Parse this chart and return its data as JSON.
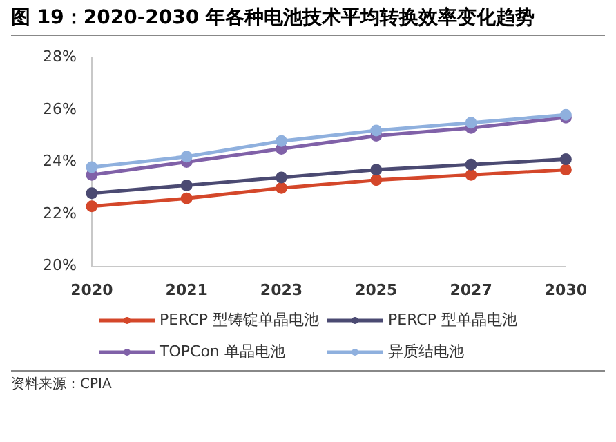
{
  "chart_data": {
    "type": "line",
    "title": "图 19：2020-2030 年各种电池技术平均转换效率变化趋势",
    "categories": [
      "2020",
      "2021",
      "2023",
      "2025",
      "2027",
      "2030"
    ],
    "series": [
      {
        "name": "PERCP 型铸锭单晶电池",
        "color": "#d4472a",
        "values": [
          22.3,
          22.6,
          23.0,
          23.3,
          23.5,
          23.7
        ]
      },
      {
        "name": "PERCP 型单晶电池",
        "color": "#4b4a72",
        "values": [
          22.8,
          23.1,
          23.4,
          23.7,
          23.9,
          24.1
        ]
      },
      {
        "name": "TOPCon 单晶电池",
        "color": "#8061a8",
        "values": [
          23.5,
          24.0,
          24.5,
          25.0,
          25.3,
          25.7
        ]
      },
      {
        "name": "异质结电池",
        "color": "#8fb0de",
        "values": [
          23.8,
          24.2,
          24.8,
          25.2,
          25.5,
          25.8
        ]
      }
    ],
    "ylim": [
      20,
      28
    ],
    "yticks": [
      {
        "value": 20,
        "label": "20%"
      },
      {
        "value": 22,
        "label": "22%"
      },
      {
        "value": 24,
        "label": "24%"
      },
      {
        "value": 26,
        "label": "26%"
      },
      {
        "value": 28,
        "label": "28%"
      }
    ],
    "grid": false,
    "legend": "bottom",
    "marker": "circle",
    "line_style": "solid",
    "annotations": [
      "资料来源：CPIA"
    ]
  }
}
